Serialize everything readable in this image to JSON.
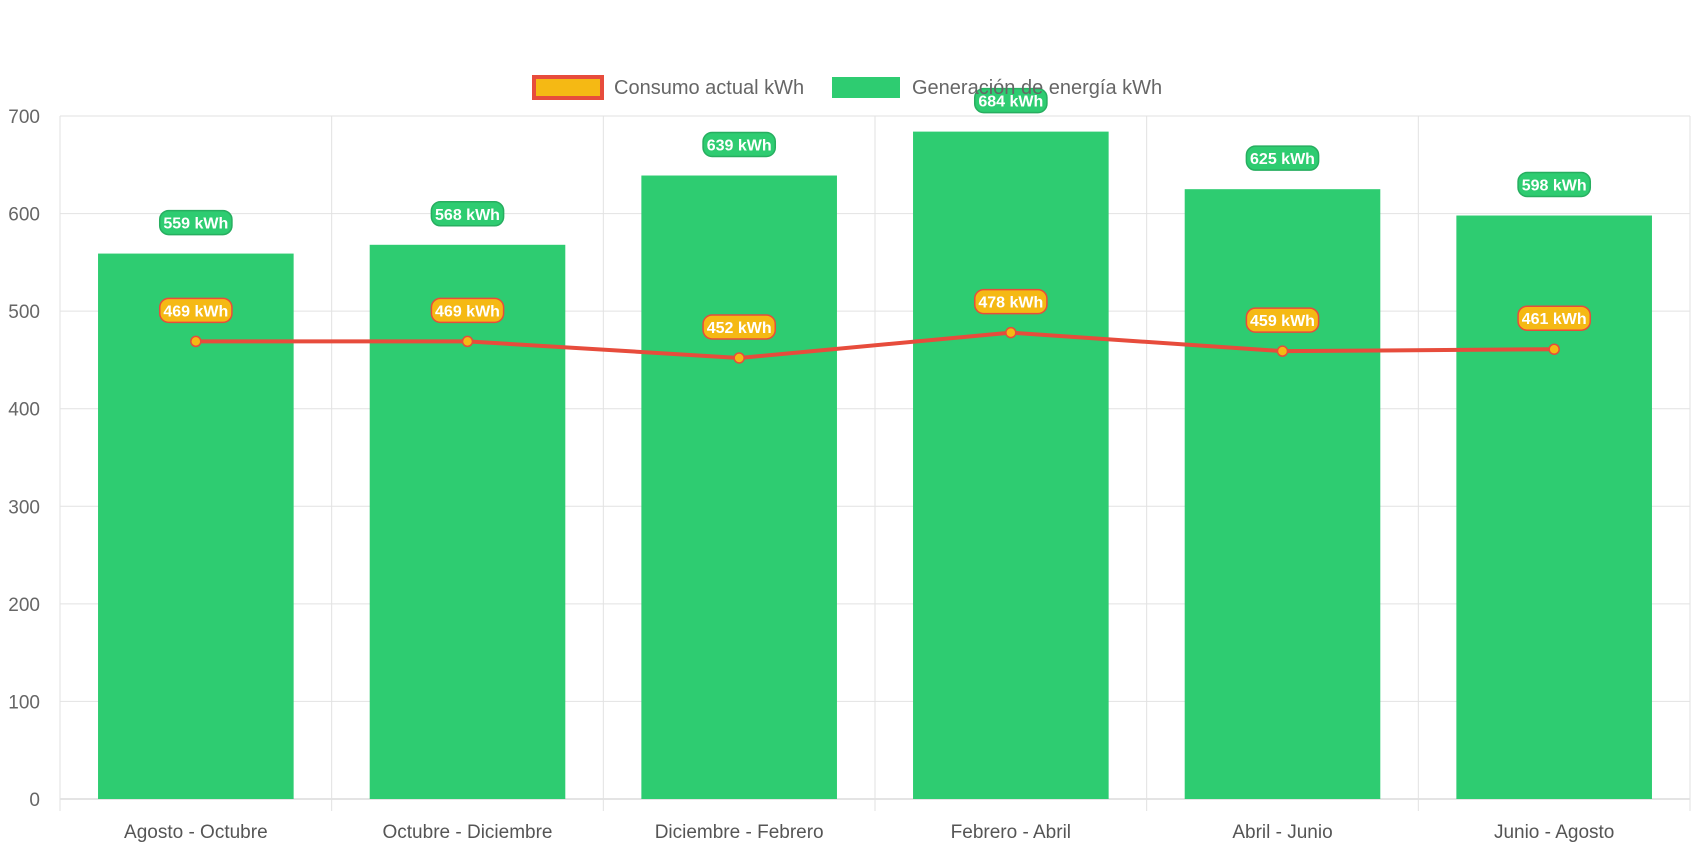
{
  "chart_data": {
    "type": "bar",
    "categories": [
      "Agosto - Octubre",
      "Octubre - Diciembre",
      "Diciembre - Febrero",
      "Febrero - Abril",
      "Abril - Junio",
      "Junio - Agosto"
    ],
    "series": [
      {
        "name": "Consumo actual kWh",
        "type": "line",
        "values": [
          469,
          469,
          452,
          478,
          459,
          461
        ],
        "data_labels": [
          "469 kWh",
          "469 kWh",
          "452 kWh",
          "478 kWh",
          "459 kWh",
          "461 kWh"
        ],
        "color": "#e74c3c",
        "fill_color": "#f5b914"
      },
      {
        "name": "Generación de energía kWh",
        "type": "bar",
        "values": [
          559,
          568,
          639,
          684,
          625,
          598
        ],
        "data_labels": [
          "559 kWh",
          "568 kWh",
          "639 kWh",
          "684 kWh",
          "625 kWh",
          "598 kWh"
        ],
        "color": "#2ecc71"
      }
    ],
    "ylim": [
      0,
      700
    ],
    "yticks": [
      "0",
      "100",
      "200",
      "300",
      "400",
      "500",
      "600",
      "700"
    ],
    "grid": true,
    "legend_position": "top-center",
    "xlabel": "",
    "ylabel": "",
    "title": ""
  }
}
